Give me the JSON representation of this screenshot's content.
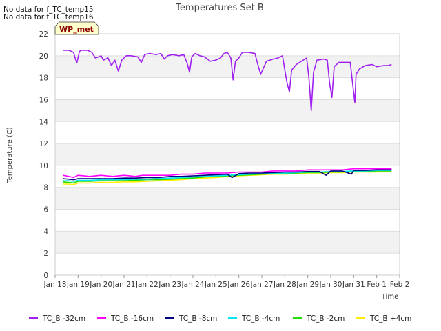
{
  "no_data_messages": [
    "No data for f_TC_temp15",
    "No data for f_TC_temp16"
  ],
  "station_badge": "WP_met",
  "chart_data": {
    "type": "line",
    "title": "Temperatures Set B",
    "xlabel": "Time",
    "ylabel": "Temperature (C)",
    "ylim": [
      0,
      22
    ],
    "xlim": [
      0,
      15
    ],
    "x_unit": "days since Jan 18",
    "yticks": [
      0,
      2,
      4,
      6,
      8,
      10,
      12,
      14,
      16,
      18,
      20,
      22
    ],
    "xticks": [
      {
        "x": 0,
        "label": "Jan 18"
      },
      {
        "x": 1,
        "label": "Jan 19"
      },
      {
        "x": 2,
        "label": "Jan 20"
      },
      {
        "x": 3,
        "label": "Jan 21"
      },
      {
        "x": 4,
        "label": "Jan 22"
      },
      {
        "x": 5,
        "label": "Jan 23"
      },
      {
        "x": 6,
        "label": "Jan 24"
      },
      {
        "x": 7,
        "label": "Jan 25"
      },
      {
        "x": 8,
        "label": "Jan 26"
      },
      {
        "x": 9,
        "label": "Jan 27"
      },
      {
        "x": 10,
        "label": "Jan 28"
      },
      {
        "x": 11,
        "label": "Jan 29"
      },
      {
        "x": 12,
        "label": "Jan 30"
      },
      {
        "x": 13,
        "label": "Jan 31"
      },
      {
        "x": 14,
        "label": "Feb 1"
      },
      {
        "x": 15,
        "label": "Feb 2"
      }
    ],
    "series": [
      {
        "name": "TC_B -32cm",
        "color": "#a020f0",
        "points": [
          [
            0.35,
            20.5
          ],
          [
            0.6,
            20.5
          ],
          [
            0.8,
            20.3
          ],
          [
            0.9,
            19.6
          ],
          [
            0.95,
            19.4
          ],
          [
            1.05,
            20.3
          ],
          [
            1.1,
            20.5
          ],
          [
            1.4,
            20.5
          ],
          [
            1.6,
            20.3
          ],
          [
            1.75,
            19.8
          ],
          [
            1.9,
            19.9
          ],
          [
            2.0,
            20.0
          ],
          [
            2.1,
            19.6
          ],
          [
            2.3,
            19.8
          ],
          [
            2.45,
            19.1
          ],
          [
            2.6,
            19.6
          ],
          [
            2.75,
            18.6
          ],
          [
            2.9,
            19.6
          ],
          [
            3.1,
            20.0
          ],
          [
            3.3,
            20.0
          ],
          [
            3.6,
            19.9
          ],
          [
            3.75,
            19.4
          ],
          [
            3.9,
            20.1
          ],
          [
            4.1,
            20.2
          ],
          [
            4.4,
            20.1
          ],
          [
            4.6,
            20.2
          ],
          [
            4.75,
            19.7
          ],
          [
            4.9,
            20.0
          ],
          [
            5.1,
            20.1
          ],
          [
            5.4,
            20.0
          ],
          [
            5.6,
            20.1
          ],
          [
            5.75,
            19.3
          ],
          [
            5.85,
            18.5
          ],
          [
            5.95,
            19.9
          ],
          [
            6.1,
            20.2
          ],
          [
            6.3,
            20.0
          ],
          [
            6.5,
            19.9
          ],
          [
            6.75,
            19.5
          ],
          [
            7.0,
            19.6
          ],
          [
            7.2,
            19.8
          ],
          [
            7.35,
            20.2
          ],
          [
            7.5,
            20.3
          ],
          [
            7.65,
            19.8
          ],
          [
            7.75,
            17.8
          ],
          [
            7.85,
            19.5
          ],
          [
            8.0,
            19.8
          ],
          [
            8.15,
            20.3
          ],
          [
            8.4,
            20.3
          ],
          [
            8.7,
            20.2
          ],
          [
            8.85,
            19.0
          ],
          [
            8.95,
            18.3
          ],
          [
            9.05,
            18.8
          ],
          [
            9.2,
            19.5
          ],
          [
            9.5,
            19.7
          ],
          [
            9.7,
            19.8
          ],
          [
            9.9,
            20.0
          ],
          [
            10.0,
            18.7
          ],
          [
            10.1,
            17.5
          ],
          [
            10.2,
            16.7
          ],
          [
            10.3,
            18.7
          ],
          [
            10.5,
            19.2
          ],
          [
            10.8,
            19.6
          ],
          [
            10.95,
            19.8
          ],
          [
            11.05,
            18.0
          ],
          [
            11.15,
            15.0
          ],
          [
            11.25,
            18.5
          ],
          [
            11.4,
            19.6
          ],
          [
            11.7,
            19.7
          ],
          [
            11.85,
            19.6
          ],
          [
            11.95,
            17.5
          ],
          [
            12.05,
            16.2
          ],
          [
            12.15,
            19.0
          ],
          [
            12.35,
            19.4
          ],
          [
            12.6,
            19.4
          ],
          [
            12.85,
            19.4
          ],
          [
            12.95,
            17.5
          ],
          [
            13.05,
            15.7
          ],
          [
            13.1,
            18.3
          ],
          [
            13.25,
            18.8
          ],
          [
            13.5,
            19.1
          ],
          [
            13.8,
            19.2
          ],
          [
            14.0,
            19.0
          ],
          [
            14.3,
            19.1
          ],
          [
            14.5,
            19.1
          ],
          [
            14.65,
            19.2
          ]
        ]
      },
      {
        "name": "TC_B -16cm",
        "color": "#ff00ff",
        "points": [
          [
            0.35,
            9.1
          ],
          [
            0.6,
            9.0
          ],
          [
            0.8,
            8.9
          ],
          [
            1.0,
            9.1
          ],
          [
            1.5,
            9.0
          ],
          [
            2.0,
            9.1
          ],
          [
            2.5,
            9.0
          ],
          [
            3.0,
            9.1
          ],
          [
            3.5,
            9.0
          ],
          [
            3.8,
            9.1
          ],
          [
            4.5,
            9.1
          ],
          [
            5.0,
            9.1
          ],
          [
            5.5,
            9.2
          ],
          [
            6.0,
            9.2
          ],
          [
            6.5,
            9.3
          ],
          [
            7.0,
            9.3
          ],
          [
            7.5,
            9.3
          ],
          [
            8.0,
            9.4
          ],
          [
            8.5,
            9.4
          ],
          [
            9.0,
            9.4
          ],
          [
            9.5,
            9.5
          ],
          [
            10.0,
            9.5
          ],
          [
            10.5,
            9.5
          ],
          [
            11.0,
            9.6
          ],
          [
            11.5,
            9.6
          ],
          [
            12.0,
            9.6
          ],
          [
            12.5,
            9.6
          ],
          [
            13.0,
            9.7
          ],
          [
            13.5,
            9.7
          ],
          [
            14.0,
            9.7
          ],
          [
            14.65,
            9.7
          ]
        ]
      },
      {
        "name": "TC_B -8cm",
        "color": "#000080",
        "points": [
          [
            0.35,
            8.8
          ],
          [
            0.6,
            8.75
          ],
          [
            0.8,
            8.7
          ],
          [
            1.0,
            8.8
          ],
          [
            1.5,
            8.8
          ],
          [
            2.0,
            8.8
          ],
          [
            2.5,
            8.8
          ],
          [
            3.0,
            8.85
          ],
          [
            3.5,
            8.85
          ],
          [
            4.0,
            8.9
          ],
          [
            4.5,
            8.9
          ],
          [
            5.0,
            9.0
          ],
          [
            5.5,
            9.0
          ],
          [
            6.0,
            9.05
          ],
          [
            6.5,
            9.1
          ],
          [
            7.0,
            9.15
          ],
          [
            7.5,
            9.2
          ],
          [
            7.7,
            8.9
          ],
          [
            8.0,
            9.25
          ],
          [
            8.5,
            9.3
          ],
          [
            9.0,
            9.3
          ],
          [
            9.5,
            9.35
          ],
          [
            10.0,
            9.4
          ],
          [
            10.5,
            9.4
          ],
          [
            11.0,
            9.45
          ],
          [
            11.5,
            9.45
          ],
          [
            11.8,
            9.1
          ],
          [
            12.0,
            9.5
          ],
          [
            12.5,
            9.5
          ],
          [
            12.9,
            9.2
          ],
          [
            13.0,
            9.55
          ],
          [
            13.5,
            9.55
          ],
          [
            14.0,
            9.6
          ],
          [
            14.65,
            9.6
          ]
        ]
      },
      {
        "name": "TC_B -4cm",
        "color": "#00e5ee",
        "points": [
          [
            0.35,
            8.6
          ],
          [
            0.6,
            8.6
          ],
          [
            0.8,
            8.55
          ],
          [
            1.0,
            8.65
          ],
          [
            1.5,
            8.65
          ],
          [
            2.0,
            8.7
          ],
          [
            2.5,
            8.7
          ],
          [
            3.0,
            8.7
          ],
          [
            3.5,
            8.75
          ],
          [
            4.0,
            8.75
          ],
          [
            4.5,
            8.8
          ],
          [
            5.0,
            8.85
          ],
          [
            5.5,
            8.9
          ],
          [
            6.0,
            8.95
          ],
          [
            6.5,
            9.0
          ],
          [
            7.0,
            9.05
          ],
          [
            7.5,
            9.1
          ],
          [
            8.0,
            9.15
          ],
          [
            8.5,
            9.2
          ],
          [
            9.0,
            9.25
          ],
          [
            9.5,
            9.3
          ],
          [
            10.0,
            9.3
          ],
          [
            10.5,
            9.35
          ],
          [
            11.0,
            9.4
          ],
          [
            11.5,
            9.4
          ],
          [
            12.0,
            9.45
          ],
          [
            12.5,
            9.45
          ],
          [
            13.0,
            9.5
          ],
          [
            13.5,
            9.5
          ],
          [
            14.0,
            9.55
          ],
          [
            14.65,
            9.55
          ]
        ]
      },
      {
        "name": "TC_B -2cm",
        "color": "#22dd00",
        "points": [
          [
            0.35,
            8.5
          ],
          [
            0.6,
            8.45
          ],
          [
            0.8,
            8.4
          ],
          [
            1.0,
            8.55
          ],
          [
            1.5,
            8.55
          ],
          [
            2.0,
            8.6
          ],
          [
            2.5,
            8.6
          ],
          [
            3.0,
            8.6
          ],
          [
            3.5,
            8.65
          ],
          [
            4.0,
            8.7
          ],
          [
            4.5,
            8.7
          ],
          [
            5.0,
            8.75
          ],
          [
            5.5,
            8.8
          ],
          [
            6.0,
            8.85
          ],
          [
            6.5,
            8.95
          ],
          [
            7.0,
            9.0
          ],
          [
            7.5,
            9.05
          ],
          [
            8.0,
            9.1
          ],
          [
            8.5,
            9.15
          ],
          [
            9.0,
            9.2
          ],
          [
            9.5,
            9.25
          ],
          [
            10.0,
            9.25
          ],
          [
            10.5,
            9.3
          ],
          [
            11.0,
            9.35
          ],
          [
            11.5,
            9.35
          ],
          [
            12.0,
            9.4
          ],
          [
            12.5,
            9.4
          ],
          [
            13.0,
            9.45
          ],
          [
            13.5,
            9.45
          ],
          [
            14.0,
            9.5
          ],
          [
            14.65,
            9.5
          ]
        ]
      },
      {
        "name": "TC_B +4cm",
        "color": "#ffee00",
        "points": [
          [
            0.35,
            8.3
          ],
          [
            0.6,
            8.3
          ],
          [
            0.8,
            8.25
          ],
          [
            1.0,
            8.4
          ],
          [
            1.5,
            8.4
          ],
          [
            2.0,
            8.45
          ],
          [
            2.5,
            8.45
          ],
          [
            3.0,
            8.5
          ],
          [
            3.5,
            8.5
          ],
          [
            4.0,
            8.55
          ],
          [
            4.5,
            8.6
          ],
          [
            5.0,
            8.65
          ],
          [
            5.5,
            8.7
          ],
          [
            6.0,
            8.8
          ],
          [
            6.5,
            8.85
          ],
          [
            7.0,
            8.9
          ],
          [
            7.5,
            9.0
          ],
          [
            8.0,
            9.05
          ],
          [
            8.5,
            9.1
          ],
          [
            9.0,
            9.15
          ],
          [
            9.5,
            9.2
          ],
          [
            10.0,
            9.2
          ],
          [
            10.5,
            9.25
          ],
          [
            11.0,
            9.3
          ],
          [
            11.5,
            9.3
          ],
          [
            12.0,
            9.35
          ],
          [
            12.5,
            9.35
          ],
          [
            13.0,
            9.4
          ],
          [
            13.5,
            9.4
          ],
          [
            14.0,
            9.4
          ],
          [
            14.65,
            9.45
          ]
        ]
      }
    ]
  }
}
